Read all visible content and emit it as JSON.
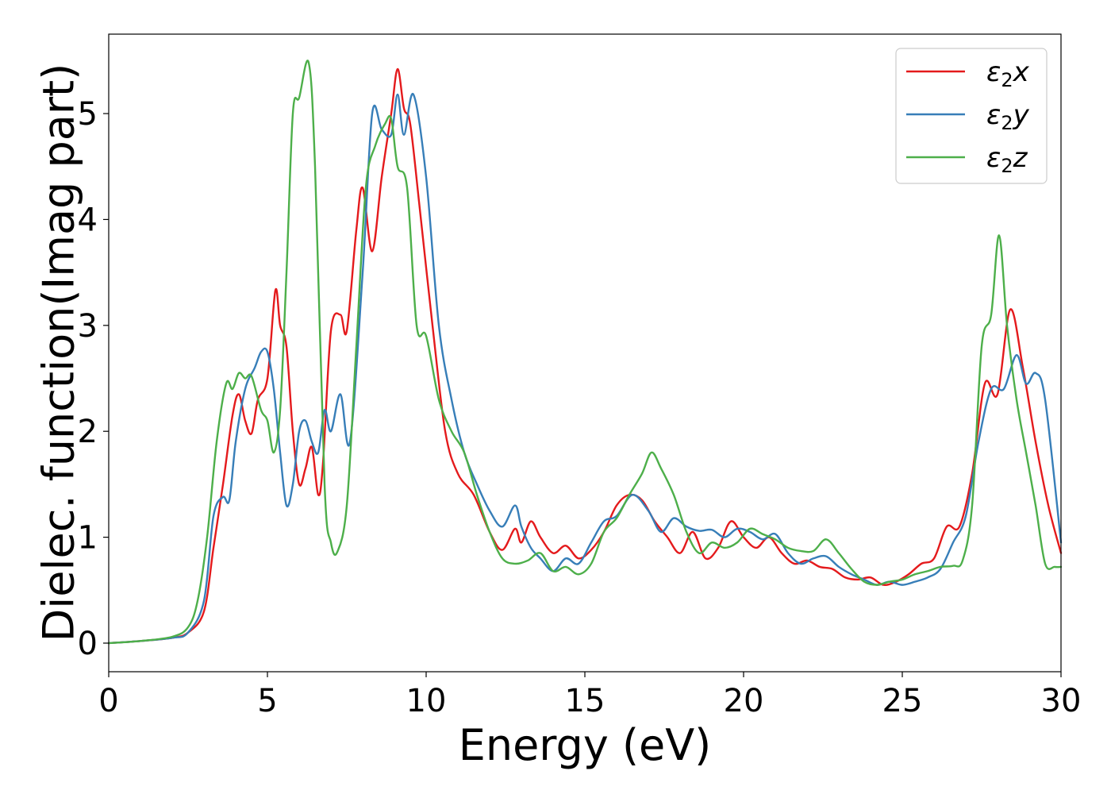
{
  "chart_data": {
    "type": "line",
    "xlabel": "Energy (eV)",
    "ylabel": "Dielec. function(Imag part)",
    "xlim": [
      0,
      30
    ],
    "ylim": [
      -0.27,
      5.75
    ],
    "xticks": [
      "0",
      "5",
      "10",
      "15",
      "20",
      "25",
      "30"
    ],
    "yticks": [
      "0",
      "1",
      "2",
      "3",
      "4",
      "5"
    ],
    "grid": false,
    "legend_position": "top-right",
    "series": [
      {
        "name": "ε₂x",
        "legend_base": "ε",
        "legend_sub": "2",
        "legend_suffix": "x",
        "color": "#e41a1c",
        "x": [
          0,
          1,
          2,
          2.5,
          3.0,
          3.3,
          3.6,
          3.9,
          4.1,
          4.3,
          4.5,
          4.7,
          5.0,
          5.25,
          5.4,
          5.6,
          5.8,
          6.0,
          6.2,
          6.4,
          6.6,
          6.75,
          7.0,
          7.3,
          7.5,
          7.8,
          8.0,
          8.3,
          8.6,
          8.9,
          9.1,
          9.3,
          9.5,
          9.8,
          10.2,
          10.6,
          11.0,
          11.5,
          12.0,
          12.4,
          12.8,
          13.0,
          13.3,
          13.6,
          14.0,
          14.4,
          14.8,
          15.2,
          15.6,
          16.0,
          16.4,
          16.8,
          17.2,
          17.6,
          18.0,
          18.4,
          18.8,
          19.2,
          19.6,
          20.0,
          20.4,
          20.8,
          21.2,
          21.6,
          22.0,
          22.4,
          22.8,
          23.2,
          23.6,
          24.0,
          24.4,
          24.8,
          25.2,
          25.6,
          26.0,
          26.4,
          26.8,
          27.2,
          27.6,
          28.0,
          28.4,
          28.8,
          29.2,
          29.6,
          30
        ],
        "y": [
          0,
          0.02,
          0.05,
          0.1,
          0.3,
          0.9,
          1.5,
          2.15,
          2.35,
          2.1,
          1.98,
          2.3,
          2.5,
          3.33,
          3.0,
          2.8,
          2.0,
          1.5,
          1.65,
          1.85,
          1.4,
          1.7,
          2.95,
          3.1,
          2.95,
          3.9,
          4.3,
          3.7,
          4.4,
          5.0,
          5.42,
          5.05,
          4.9,
          4.1,
          3.0,
          2.0,
          1.6,
          1.4,
          1.05,
          0.88,
          1.08,
          0.95,
          1.15,
          1.0,
          0.85,
          0.92,
          0.8,
          0.88,
          1.05,
          1.3,
          1.4,
          1.35,
          1.15,
          1.0,
          0.85,
          1.05,
          0.8,
          0.9,
          1.15,
          1.0,
          0.9,
          1.0,
          0.85,
          0.75,
          0.78,
          0.72,
          0.7,
          0.62,
          0.6,
          0.62,
          0.55,
          0.58,
          0.65,
          0.75,
          0.8,
          1.1,
          1.1,
          1.6,
          2.45,
          2.35,
          3.15,
          2.6,
          1.9,
          1.3,
          0.85
        ]
      },
      {
        "name": "ε₂y",
        "legend_base": "ε",
        "legend_sub": "2",
        "legend_suffix": "y",
        "color": "#377eb8",
        "x": [
          0,
          1,
          2,
          2.5,
          3.0,
          3.3,
          3.6,
          3.8,
          4.0,
          4.3,
          4.6,
          4.8,
          5.0,
          5.2,
          5.4,
          5.6,
          5.8,
          6.0,
          6.2,
          6.4,
          6.6,
          6.8,
          7.0,
          7.3,
          7.6,
          8.0,
          8.3,
          8.6,
          8.9,
          9.1,
          9.3,
          9.6,
          10.0,
          10.4,
          10.8,
          11.2,
          11.6,
          12.0,
          12.4,
          12.8,
          13.0,
          13.3,
          13.6,
          14.0,
          14.4,
          14.8,
          15.2,
          15.6,
          16.0,
          16.5,
          17.0,
          17.4,
          17.8,
          18.2,
          18.6,
          19.0,
          19.4,
          19.8,
          20.2,
          20.6,
          21.0,
          21.4,
          21.8,
          22.2,
          22.6,
          23.0,
          23.4,
          23.8,
          24.2,
          24.6,
          25.0,
          25.4,
          25.8,
          26.2,
          26.6,
          27.0,
          27.4,
          27.8,
          28.2,
          28.6,
          28.9,
          29.2,
          29.5,
          30
        ],
        "y": [
          0,
          0.02,
          0.05,
          0.1,
          0.4,
          1.2,
          1.38,
          1.35,
          1.9,
          2.4,
          2.6,
          2.75,
          2.75,
          2.4,
          1.8,
          1.3,
          1.5,
          2.0,
          2.1,
          1.9,
          1.8,
          2.2,
          2.0,
          2.35,
          1.9,
          3.5,
          5.0,
          4.85,
          4.8,
          5.18,
          4.8,
          5.18,
          4.4,
          3.0,
          2.3,
          1.8,
          1.5,
          1.25,
          1.1,
          1.3,
          1.1,
          0.9,
          0.8,
          0.68,
          0.8,
          0.75,
          0.95,
          1.15,
          1.2,
          1.4,
          1.25,
          1.05,
          1.18,
          1.1,
          1.06,
          1.07,
          1.0,
          1.08,
          1.05,
          0.98,
          1.03,
          0.85,
          0.75,
          0.8,
          0.82,
          0.72,
          0.65,
          0.6,
          0.55,
          0.58,
          0.55,
          0.58,
          0.62,
          0.7,
          0.95,
          1.2,
          1.9,
          2.4,
          2.4,
          2.72,
          2.45,
          2.55,
          2.3,
          0.95
        ]
      },
      {
        "name": "ε₂z",
        "legend_base": "ε",
        "legend_sub": "2",
        "legend_suffix": "z",
        "color": "#4daf4a",
        "x": [
          0,
          1,
          2,
          2.5,
          2.8,
          3.1,
          3.4,
          3.7,
          3.9,
          4.1,
          4.3,
          4.5,
          4.8,
          5.0,
          5.2,
          5.4,
          5.6,
          5.8,
          6.0,
          6.3,
          6.5,
          6.8,
          7.0,
          7.2,
          7.5,
          7.8,
          8.1,
          8.4,
          8.7,
          8.9,
          9.1,
          9.4,
          9.7,
          10.0,
          10.4,
          10.8,
          11.2,
          11.6,
          12.0,
          12.4,
          12.8,
          13.2,
          13.6,
          14.0,
          14.4,
          14.8,
          15.2,
          15.6,
          16.0,
          16.4,
          16.8,
          17.1,
          17.4,
          17.8,
          18.2,
          18.6,
          19.0,
          19.4,
          19.8,
          20.2,
          20.6,
          21.0,
          21.4,
          21.8,
          22.2,
          22.6,
          23.0,
          23.4,
          23.8,
          24.2,
          24.6,
          25.0,
          25.4,
          25.8,
          26.2,
          26.6,
          26.9,
          27.2,
          27.5,
          27.8,
          28.05,
          28.3,
          28.6,
          28.9,
          29.2,
          29.5,
          29.8,
          30
        ],
        "y": [
          0,
          0.02,
          0.06,
          0.15,
          0.4,
          1.0,
          1.9,
          2.45,
          2.4,
          2.55,
          2.5,
          2.52,
          2.2,
          2.1,
          1.8,
          2.2,
          3.5,
          5.0,
          5.15,
          5.48,
          4.5,
          1.5,
          0.95,
          0.86,
          1.3,
          2.8,
          4.3,
          4.7,
          4.9,
          4.95,
          4.5,
          4.3,
          3.0,
          2.9,
          2.3,
          2.0,
          1.8,
          1.4,
          1.05,
          0.8,
          0.75,
          0.78,
          0.85,
          0.68,
          0.72,
          0.65,
          0.75,
          1.05,
          1.18,
          1.4,
          1.6,
          1.8,
          1.65,
          1.4,
          1.05,
          0.85,
          0.95,
          0.9,
          0.95,
          1.08,
          1.03,
          0.98,
          0.9,
          0.87,
          0.87,
          0.98,
          0.85,
          0.7,
          0.58,
          0.55,
          0.58,
          0.6,
          0.65,
          0.68,
          0.72,
          0.73,
          0.78,
          1.3,
          2.8,
          3.1,
          3.85,
          3.0,
          2.3,
          1.8,
          1.3,
          0.75,
          0.72,
          0.72
        ]
      }
    ]
  }
}
